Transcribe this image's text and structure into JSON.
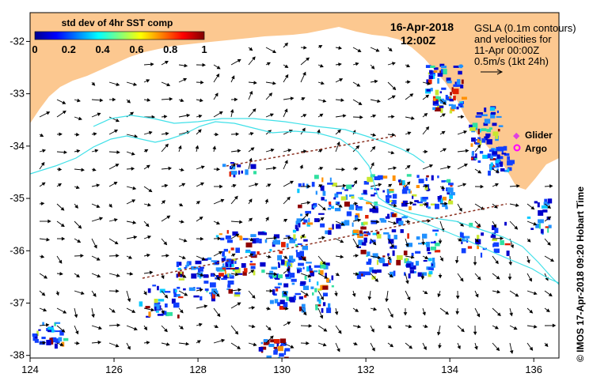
{
  "title": {
    "date": "16-Apr-2018",
    "time": "12:00Z"
  },
  "colorbar": {
    "title": "std dev of 4hr SST comp",
    "ticks": [
      "0",
      "0.2",
      "0.4",
      "0.6",
      "0.8",
      "1"
    ],
    "range": [
      0,
      1
    ]
  },
  "overlay_note": {
    "line1": "GSLA (0.1m contours)",
    "line2": "and velocities for",
    "line3": "11-Apr 00:00Z",
    "scale": "0.5m/s (1kt 24h)"
  },
  "legend": {
    "glider": "Glider",
    "argo": "Argo"
  },
  "axes": {
    "x_ticks": [
      "124",
      "126",
      "128",
      "130",
      "132",
      "134",
      "136"
    ],
    "y_ticks": [
      "-32",
      "-33",
      "-34",
      "-35",
      "-36",
      "-37",
      "-38"
    ],
    "x_range": [
      124,
      136.6
    ],
    "y_range": [
      -38.05,
      -31.45
    ]
  },
  "credit": "© IMOS 17-Apr-2018 09:20 Hobart Time",
  "colors": {
    "land": "#fcc890",
    "sea": "#ffffff",
    "contour": "#40e0e8",
    "glider": "#e040e0",
    "argo": "#ff00ff"
  }
}
